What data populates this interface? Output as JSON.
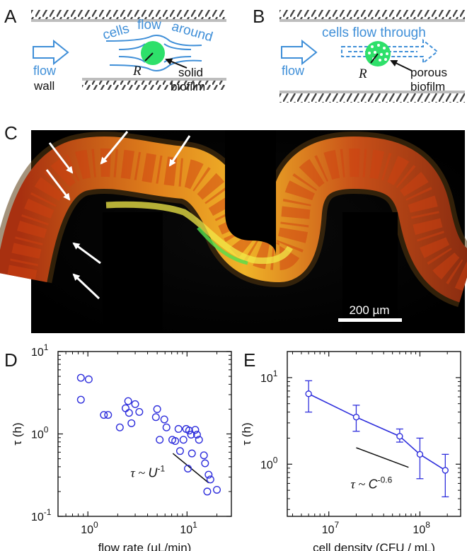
{
  "panels": {
    "a": {
      "label": "A",
      "text_cells": "cells",
      "text_flow_word": "flow",
      "text_around": "around",
      "text_flow": "flow",
      "text_r": "R",
      "text_solid": "solid",
      "text_biofilm": "biofilm",
      "text_wall": "wall"
    },
    "b": {
      "label": "B",
      "text_through": "cells flow through",
      "text_flow": "flow",
      "text_r": "R",
      "text_porous": "porous",
      "text_biofilm": "biofilm"
    },
    "c": {
      "label": "C",
      "scalebar": "200 µm"
    },
    "d": {
      "label": "D"
    },
    "e": {
      "label": "E"
    }
  },
  "colors": {
    "blue": "#3f8fd8",
    "marker": "#2f2fdc",
    "biofilm_green": "#2ee06a"
  },
  "chart_data": [
    {
      "panel": "D",
      "type": "scatter",
      "xlabel": "flow rate (μL/min)",
      "ylabel": "τ (h)",
      "xscale": "log",
      "yscale": "log",
      "xlim": [
        0.5,
        28
      ],
      "ylim": [
        0.1,
        10
      ],
      "xticks": [
        {
          "v": 1,
          "b": "10",
          "e": "0"
        },
        {
          "v": 10,
          "b": "10",
          "e": "1"
        }
      ],
      "yticks": [
        {
          "v": 0.1,
          "b": "10",
          "e": "-1"
        },
        {
          "v": 1,
          "b": "10",
          "e": "0"
        },
        {
          "v": 10,
          "b": "10",
          "e": "1"
        }
      ],
      "annotation": {
        "prefix": "τ ~ ",
        "var": "U",
        "exp": "-1"
      },
      "guide": {
        "x": [
          7.2,
          16.5
        ],
        "y": [
          0.58,
          0.255
        ]
      },
      "marker_color": "#2f2fdc",
      "points": [
        [
          0.85,
          4.8
        ],
        [
          0.85,
          2.6
        ],
        [
          1.02,
          4.6
        ],
        [
          1.45,
          1.7
        ],
        [
          1.6,
          1.7
        ],
        [
          2.1,
          1.2
        ],
        [
          2.4,
          2.05
        ],
        [
          2.55,
          2.5
        ],
        [
          2.6,
          1.8
        ],
        [
          2.75,
          1.35
        ],
        [
          3.0,
          2.3
        ],
        [
          3.3,
          1.85
        ],
        [
          4.85,
          1.6
        ],
        [
          5.0,
          2.0
        ],
        [
          5.3,
          0.85
        ],
        [
          5.9,
          1.5
        ],
        [
          6.2,
          1.2
        ],
        [
          7.1,
          0.85
        ],
        [
          7.6,
          0.82
        ],
        [
          8.2,
          1.15
        ],
        [
          8.5,
          0.62
        ],
        [
          9.2,
          0.85
        ],
        [
          9.8,
          1.15
        ],
        [
          10.2,
          0.38
        ],
        [
          10.5,
          1.1
        ],
        [
          11.0,
          0.98
        ],
        [
          11.2,
          0.58
        ],
        [
          12.1,
          1.12
        ],
        [
          12.6,
          0.98
        ],
        [
          13.2,
          0.85
        ],
        [
          14.8,
          0.55
        ],
        [
          15.2,
          0.44
        ],
        [
          16.5,
          0.32
        ],
        [
          17.2,
          0.28
        ],
        [
          16.0,
          0.2
        ],
        [
          20.0,
          0.21
        ]
      ]
    },
    {
      "panel": "E",
      "type": "line",
      "xlabel": "cell density (CFU / mL)",
      "ylabel": "τ (h)",
      "xscale": "log",
      "yscale": "log",
      "xlim": [
        3500000,
        280000000
      ],
      "ylim": [
        0.25,
        20
      ],
      "xticks": [
        {
          "v": 10000000,
          "b": "10",
          "e": "7"
        },
        {
          "v": 100000000,
          "b": "10",
          "e": "8"
        }
      ],
      "yticks": [
        {
          "v": 1,
          "b": "10",
          "e": "0"
        },
        {
          "v": 10,
          "b": "10",
          "e": "1"
        }
      ],
      "annotation": {
        "prefix": "τ ~ ",
        "var": "C",
        "exp": "-0.6"
      },
      "guide": {
        "x": [
          20000000,
          75000000
        ],
        "y": [
          1.55,
          0.92
        ]
      },
      "line_color": "#2f2fdc",
      "series": [
        {
          "x": [
            6000000,
            20000000,
            60000000,
            100000000,
            190000000
          ],
          "y": [
            6.5,
            3.5,
            2.1,
            1.3,
            0.85
          ],
          "err_low": [
            4.0,
            2.4,
            1.8,
            0.68,
            0.42
          ],
          "err_high": [
            9.2,
            4.8,
            2.55,
            2.0,
            1.3
          ]
        }
      ]
    }
  ]
}
